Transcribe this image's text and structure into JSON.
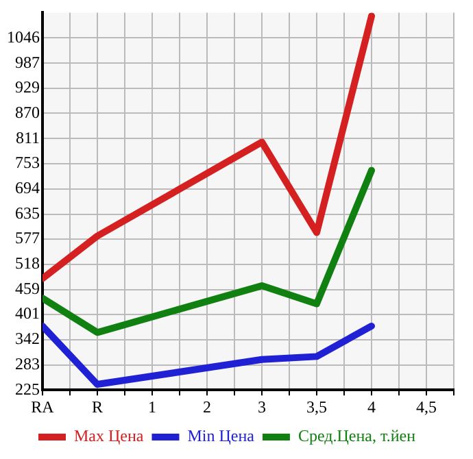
{
  "chart_data": {
    "type": "line",
    "categories": [
      "RA",
      "R",
      "1",
      "2",
      "3",
      "3,5",
      "4",
      "4,5"
    ],
    "series": [
      {
        "name": "Max Цена",
        "color": "#d42020",
        "values": [
          485,
          584,
          null,
          null,
          803,
          592,
          1097,
          null
        ]
      },
      {
        "name": "Min Цена",
        "color": "#2020d4",
        "values": [
          374,
          238,
          null,
          null,
          296,
          303,
          374,
          null
        ]
      },
      {
        "name": "Сред.Цена, т.йен",
        "color": "#108010",
        "values": [
          439,
          359,
          null,
          null,
          468,
          426,
          737,
          null
        ]
      }
    ],
    "ylim": [
      225,
      1105
    ],
    "yticks": [
      225,
      283,
      342,
      401,
      459,
      518,
      577,
      635,
      694,
      753,
      811,
      870,
      929,
      987,
      1046
    ],
    "grid": true,
    "legend": "bottom",
    "marker": "none",
    "line_style": "solid"
  }
}
